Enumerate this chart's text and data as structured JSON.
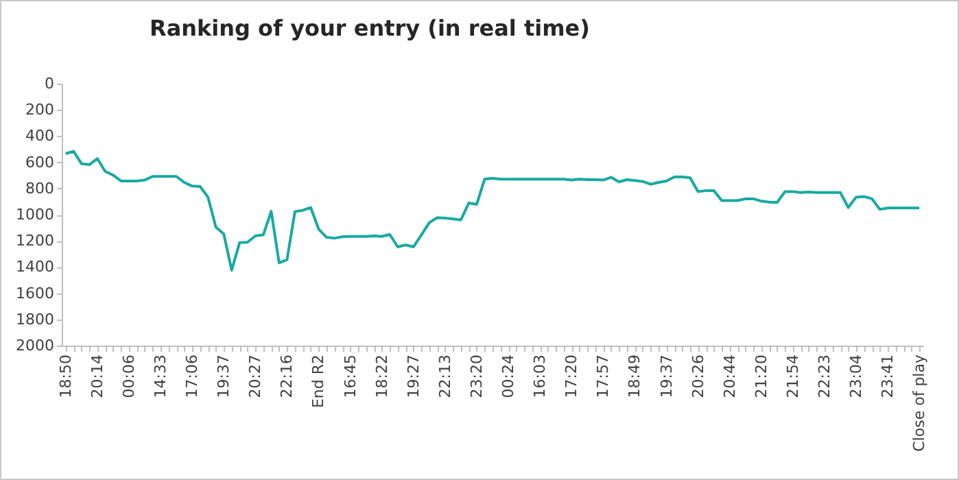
{
  "chart_data": {
    "type": "line",
    "title": "Ranking of your entry (in real time)",
    "categories": [
      "18:50",
      null,
      null,
      null,
      "20:14",
      null,
      null,
      null,
      "00:06",
      null,
      null,
      null,
      "14:33",
      null,
      null,
      null,
      "17:06",
      null,
      null,
      null,
      "19:37",
      null,
      null,
      null,
      "20:27",
      null,
      null,
      null,
      "22:16",
      null,
      null,
      null,
      "End R2",
      null,
      null,
      null,
      "16:45",
      null,
      null,
      null,
      "18:22",
      null,
      null,
      null,
      "19:27",
      null,
      null,
      null,
      "22:13",
      null,
      null,
      null,
      "23:20",
      null,
      null,
      null,
      "00:24",
      null,
      null,
      null,
      "16:03",
      null,
      null,
      null,
      "17:20",
      null,
      null,
      null,
      "17:57",
      null,
      null,
      null,
      "18:49",
      null,
      null,
      null,
      "19:37",
      null,
      null,
      null,
      "20:26",
      null,
      null,
      null,
      "20:44",
      null,
      null,
      null,
      "21:20",
      null,
      null,
      null,
      "21:54",
      null,
      null,
      null,
      "22:23",
      null,
      null,
      null,
      "23:04",
      null,
      null,
      null,
      "23:41",
      null,
      null,
      null,
      "Close of play"
    ],
    "series": [
      {
        "color": "#17aaa2",
        "values": [
          534,
          517,
          611,
          618,
          572,
          670,
          698,
          743,
          743,
          743,
          736,
          708,
          708,
          708,
          708,
          754,
          782,
          785,
          866,
          1096,
          1148,
          1424,
          1214,
          1211,
          1162,
          1155,
          974,
          1368,
          1344,
          977,
          967,
          946,
          1110,
          1173,
          1180,
          1169,
          1166,
          1166,
          1166,
          1162,
          1166,
          1152,
          1246,
          1232,
          1246,
          1155,
          1061,
          1023,
          1026,
          1033,
          1040,
          911,
          921,
          729,
          722,
          729,
          729,
          729,
          729,
          729,
          729,
          729,
          729,
          729,
          736,
          729,
          733,
          733,
          736,
          715,
          750,
          733,
          740,
          747,
          768,
          754,
          743,
          712,
          712,
          719,
          824,
          817,
          817,
          893,
          893,
          893,
          879,
          879,
          897,
          904,
          907,
          824,
          824,
          831,
          827,
          831,
          831,
          831,
          831,
          946,
          866,
          862,
          879,
          960,
          949,
          949,
          949,
          949,
          949
        ]
      }
    ],
    "ylim": [
      2000,
      0
    ],
    "yticks": [
      0,
      200,
      400,
      600,
      800,
      1000,
      1200,
      1400,
      1600,
      1800,
      2000
    ],
    "grid": false,
    "marker": "none",
    "line_style": "solid"
  }
}
